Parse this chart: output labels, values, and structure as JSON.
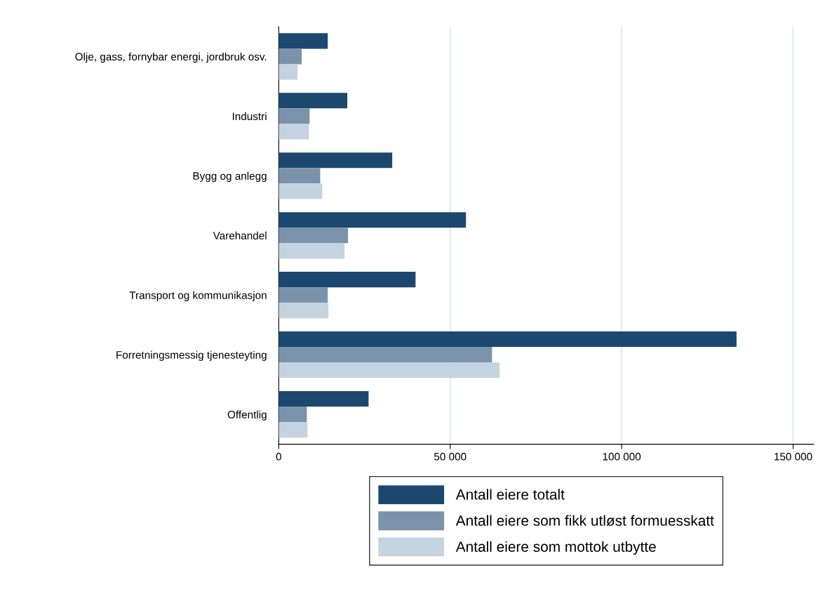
{
  "chart_data": {
    "type": "bar",
    "orientation": "horizontal",
    "categories": [
      "Olje, gass, fornybar energi, jordbruk osv.",
      "Industri",
      "Bygg og anlegg",
      "Varehandel",
      "Transport og kommunikasjon",
      "Forretningsmessig tjenesteyting",
      "Offentlig"
    ],
    "series": [
      {
        "name": "Antall eiere totalt",
        "color": "#1c4870",
        "values": [
          14300,
          20000,
          33100,
          54600,
          39900,
          133500,
          26200
        ]
      },
      {
        "name": "Antall eiere som fikk utløst formuesskatt",
        "color": "#7b93aa",
        "values": [
          6700,
          9000,
          12100,
          20200,
          14300,
          62200,
          8200
        ]
      },
      {
        "name": "Antall eiere som mottok utbytte",
        "color": "#c5d2df",
        "values": [
          5500,
          8800,
          12700,
          19200,
          14500,
          64400,
          8400
        ]
      }
    ],
    "xlim": [
      0,
      156000
    ],
    "xticks": [
      0,
      {
        "value": 50000,
        "label": "50 000"
      },
      {
        "value": 100000,
        "label": "100 000"
      },
      {
        "value": 150000,
        "label": "150 000"
      }
    ],
    "grid": "x",
    "legend": "bottom"
  }
}
